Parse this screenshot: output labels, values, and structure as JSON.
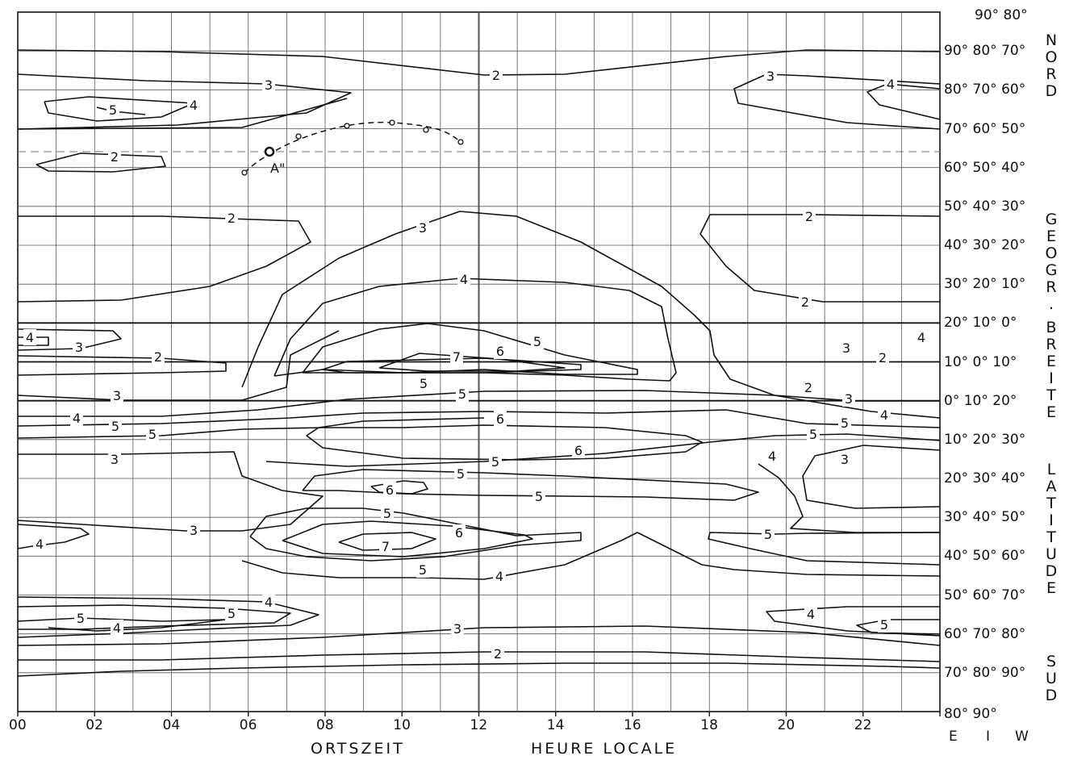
{
  "chart_data": {
    "type": "contour",
    "x_axis": {
      "ticks": [
        "00",
        "02",
        "04",
        "06",
        "08",
        "10",
        "12",
        "14",
        "16",
        "18",
        "20",
        "22"
      ],
      "range": [
        0,
        24
      ],
      "title_left": "ORTSZEIT",
      "title_right": "HEURE LOCALE"
    },
    "y_axis": {
      "side_title_top": "NORD",
      "side_title_mid1": "GEOGR. BREITE",
      "side_title_mid2": "LATITUDE",
      "side_title_bottom": "SUD",
      "label_columns": [
        "E",
        "I",
        "W"
      ],
      "label_rows": [
        "90° 80°",
        "90° 80° 70°",
        "80° 70° 60°",
        "70° 60° 50°",
        "60° 50° 40°",
        "50° 40° 30°",
        "40° 30° 20°",
        "30° 20° 10°",
        "20° 10° 0°",
        "10° 0° 10°",
        "0° 10° 20°",
        "10° 20° 30°",
        "20° 30° 40°",
        "30° 40° 50°",
        "40° 50° 60°",
        "50° 60° 70°",
        "60° 70° 80°",
        "70° 80° 90°",
        "80° 90°"
      ]
    },
    "contour_levels": [
      2,
      3,
      4,
      5,
      6,
      7
    ],
    "annotation": {
      "label": "A\""
    },
    "grid": true
  }
}
